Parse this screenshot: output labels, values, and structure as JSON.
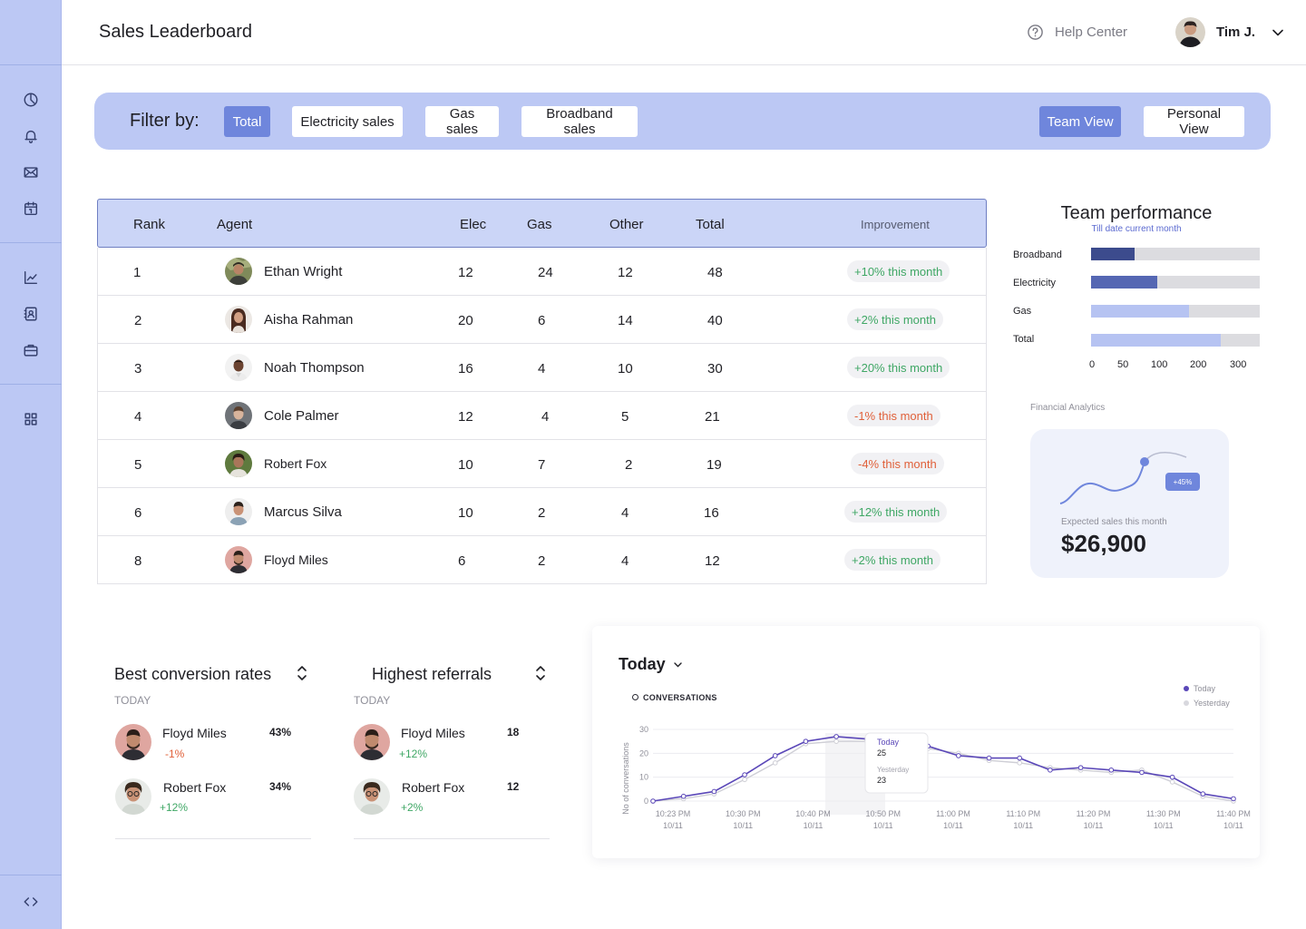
{
  "header": {
    "title": "Sales Leaderboard",
    "help_label": "Help Center",
    "user_name": "Tim J."
  },
  "filter": {
    "label": "Filter by:",
    "options": [
      "Total",
      "Electricity sales",
      "Gas sales",
      "Broadband sales"
    ],
    "active": "Total",
    "views": [
      "Team View",
      "Personal View"
    ],
    "active_view": "Team View"
  },
  "table": {
    "columns": [
      "Rank",
      "Agent",
      "Elec",
      "Gas",
      "Other",
      "Total",
      "Improvement"
    ],
    "rows": [
      {
        "rank": "1",
        "agent": "Ethan Wright",
        "elec": "12",
        "gas": "24",
        "other": "12",
        "total": "48",
        "improvement": "+10% this month",
        "trend": "up"
      },
      {
        "rank": "2",
        "agent": "Aisha Rahman",
        "elec": "20",
        "gas": "6",
        "other": "14",
        "total": "40",
        "improvement": "+2% this month",
        "trend": "up"
      },
      {
        "rank": "3",
        "agent": "Noah Thompson",
        "elec": "16",
        "gas": "4",
        "other": "10",
        "total": "30",
        "improvement": "+20% this month",
        "trend": "up"
      },
      {
        "rank": "4",
        "agent": "Cole Palmer",
        "elec": "12",
        "gas": "4",
        "other": "5",
        "total": "21",
        "improvement": "-1% this month",
        "trend": "down"
      },
      {
        "rank": "5",
        "agent": "Robert Fox",
        "elec": "10",
        "gas": "7",
        "other": "2",
        "total": "19",
        "improvement": "-4% this month",
        "trend": "down"
      },
      {
        "rank": "6",
        "agent": "Marcus Silva",
        "elec": "10",
        "gas": "2",
        "other": "4",
        "total": "16",
        "improvement": "+12% this month",
        "trend": "up"
      },
      {
        "rank": "8",
        "agent": "Floyd Miles",
        "elec": "6",
        "gas": "2",
        "other": "4",
        "total": "12",
        "improvement": "+2% this month",
        "trend": "up"
      }
    ]
  },
  "team_performance": {
    "title": "Team performance",
    "subtitle": "Till date current month",
    "bars": [
      {
        "label": "Broadband",
        "fraction": 0.26,
        "color": "#3c4b8d"
      },
      {
        "label": "Electricity",
        "fraction": 0.39,
        "color": "#5567b3"
      },
      {
        "label": "Gas",
        "fraction": 0.58,
        "color": "#b6c3f2"
      },
      {
        "label": "Total",
        "fraction": 0.77,
        "color": "#b6c3f2"
      }
    ],
    "ticks": [
      "0",
      "50",
      "100",
      "200",
      "300"
    ]
  },
  "financial": {
    "label": "Financial Analytics",
    "badge": "+45%",
    "expected_label": "Expected sales this month",
    "amount": "$26,900"
  },
  "conversion": {
    "title": "Best conversion rates",
    "period": "TODAY",
    "items": [
      {
        "name": "Floyd Miles",
        "value": "43%",
        "delta": "-1%",
        "trend": "down"
      },
      {
        "name": "Robert Fox",
        "value": "34%",
        "delta": "+12%",
        "trend": "up"
      }
    ]
  },
  "referrals": {
    "title": "Highest referrals",
    "period": "TODAY",
    "items": [
      {
        "name": "Floyd Miles",
        "value": "18",
        "delta": "+12%",
        "trend": "up"
      },
      {
        "name": "Robert Fox",
        "value": "12",
        "delta": "+2%",
        "trend": "up"
      }
    ]
  },
  "conversations": {
    "title": "Today",
    "label": "CONVERSATIONS",
    "legend": [
      "Today",
      "Yesterday"
    ],
    "tooltip": {
      "today_label": "Today",
      "today_value": "25",
      "yesterday_label": "Yesterday",
      "yesterday_value": "23"
    }
  },
  "chart_data": {
    "type": "line",
    "title": "CONVERSATIONS",
    "ylabel": "No of conversations",
    "xlabel": "",
    "ylim": [
      0,
      30
    ],
    "yticks": [
      "0",
      "10",
      "20",
      "30"
    ],
    "x_ticks": [
      [
        "10:23 PM",
        "10/11"
      ],
      [
        "10:30 PM",
        "10/11"
      ],
      [
        "10:40 PM",
        "10/11"
      ],
      [
        "10:50 PM",
        "10/11"
      ],
      [
        "11:00 PM",
        "10/11"
      ],
      [
        "11:10 PM",
        "10/11"
      ],
      [
        "11:20 PM",
        "10/11"
      ],
      [
        "11:30 PM",
        "10/11"
      ],
      [
        "11:40 PM",
        "10/11"
      ]
    ],
    "series": [
      {
        "name": "Today",
        "color": "#5a47b8",
        "values": [
          0,
          2,
          4,
          11,
          19,
          25,
          27,
          26,
          25,
          23,
          19,
          18,
          18,
          13,
          14,
          13,
          12,
          10,
          3,
          1
        ]
      },
      {
        "name": "Yesterday",
        "color": "#cfcfd6",
        "values": [
          0,
          1,
          3,
          9,
          16,
          24,
          25,
          25,
          24,
          22,
          20,
          17,
          16,
          14,
          13,
          12,
          13,
          8,
          2,
          0
        ]
      }
    ],
    "legend_position": "top-right"
  }
}
